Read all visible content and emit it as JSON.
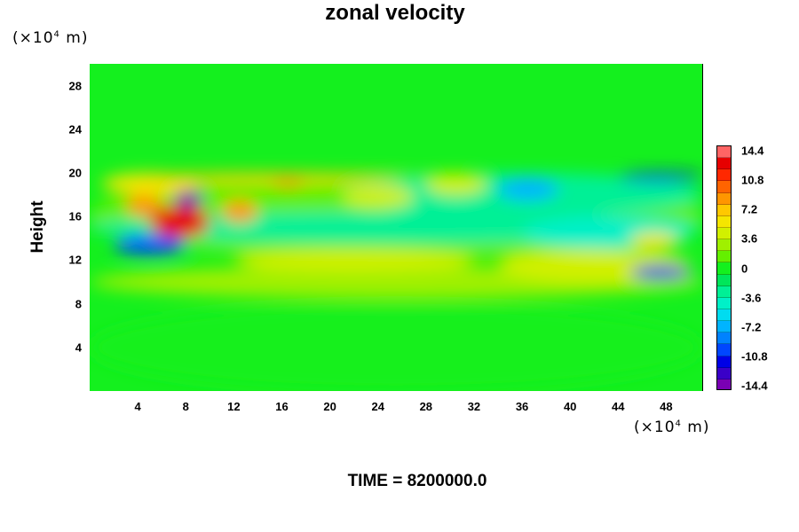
{
  "chart_data": {
    "type": "heatmap",
    "title": "zonal velocity",
    "ylabel": "Height",
    "xlabel": "",
    "y_unit": "(×10⁴ m)",
    "x_unit": "(×10⁴ m)",
    "x_ticks": [
      "4",
      "8",
      "12",
      "16",
      "20",
      "24",
      "28",
      "32",
      "36",
      "40",
      "44",
      "48"
    ],
    "y_ticks": [
      "4",
      "8",
      "12",
      "16",
      "20",
      "24",
      "28"
    ],
    "xlim": [
      0,
      51
    ],
    "ylim": [
      0,
      30
    ],
    "colorbar": {
      "min": -14.4,
      "max": 14.4,
      "tick_labels": [
        "14.4",
        "10.8",
        "7.2",
        "3.6",
        "0",
        "-3.6",
        "-7.2",
        "-10.8",
        "-14.4"
      ],
      "colors": [
        "#7a00b4",
        "#3a00c8",
        "#0000e6",
        "#0046ff",
        "#0082ff",
        "#00b4ff",
        "#00dcf0",
        "#00f0c8",
        "#00f096",
        "#00e65a",
        "#14f01e",
        "#64f000",
        "#a0f000",
        "#d2f000",
        "#f5e600",
        "#ffc800",
        "#ff9600",
        "#ff6400",
        "#ff2800",
        "#e60000",
        "#ff6464"
      ]
    },
    "background_value": 0.5,
    "features": [
      {
        "x": 0,
        "y": 12,
        "w": 51,
        "h": 8,
        "value": 2.0
      },
      {
        "x": 0,
        "y": 8.5,
        "w": 51,
        "h": 3,
        "value": 3.0
      },
      {
        "x": 0,
        "y": 0,
        "w": 51,
        "h": 8,
        "value": -0.5
      },
      {
        "x": 0,
        "y": 13.5,
        "w": 51,
        "h": 3,
        "value": -2.5
      },
      {
        "x": 21,
        "y": 16,
        "w": 30,
        "h": 4,
        "value": -3.0
      },
      {
        "x": 12,
        "y": 11,
        "w": 20,
        "h": 2,
        "value": 4.0
      },
      {
        "x": 34,
        "y": 10,
        "w": 16,
        "h": 3,
        "value": 4.0
      },
      {
        "x": 36,
        "y": 13,
        "w": 14,
        "h": 3,
        "value": -4.0
      },
      {
        "x": 1,
        "y": 18,
        "w": 8,
        "h": 2,
        "value": 6.0
      },
      {
        "x": 3,
        "y": 16,
        "w": 3,
        "h": 2,
        "value": 9.0
      },
      {
        "x": 5,
        "y": 14,
        "w": 5,
        "h": 3,
        "value": 13.0
      },
      {
        "x": 7,
        "y": 16.8,
        "w": 2.5,
        "h": 1.6,
        "value": -14.0
      },
      {
        "x": 2,
        "y": 12.5,
        "w": 6,
        "h": 1.8,
        "value": -10.0
      },
      {
        "x": 11,
        "y": 15.5,
        "w": 3,
        "h": 2,
        "value": 9.0
      },
      {
        "x": 15,
        "y": 18.8,
        "w": 3,
        "h": 1.2,
        "value": 13.0
      },
      {
        "x": 4,
        "y": 19.2,
        "w": 22,
        "h": 0.8,
        "value": 7.0
      },
      {
        "x": 34,
        "y": 17.5,
        "w": 5,
        "h": 2,
        "value": -7.0
      },
      {
        "x": 44,
        "y": 19.2,
        "w": 7,
        "h": 0.8,
        "value": -11.0
      },
      {
        "x": 45,
        "y": 10.3,
        "w": 5,
        "h": 1.2,
        "value": -11.0
      },
      {
        "x": 21,
        "y": 16.8,
        "w": 6,
        "h": 2,
        "value": 5.0
      },
      {
        "x": 28,
        "y": 18,
        "w": 5,
        "h": 2,
        "value": 4.0
      },
      {
        "x": 45,
        "y": 13,
        "w": 4,
        "h": 1.5,
        "value": 6.0
      }
    ]
  },
  "time_label": "TIME = 8200000.0"
}
